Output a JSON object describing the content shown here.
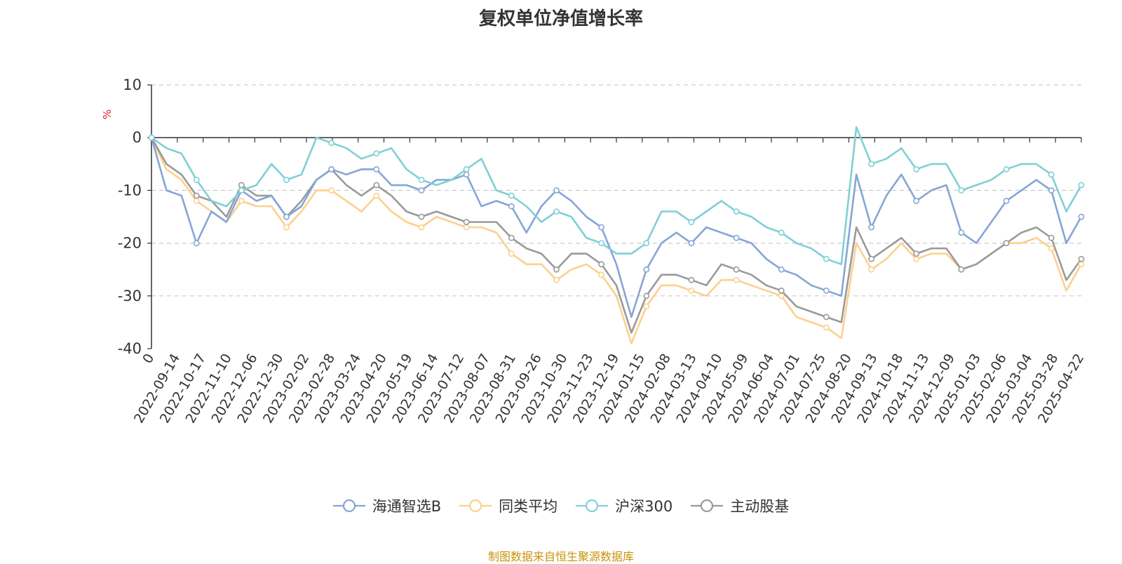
{
  "title": "复权单位净值增长率",
  "source_note": "制图数据来自恒生聚源数据库",
  "colors": {
    "海通智选B": "#86a5d6",
    "同类平均": "#fcd08e",
    "沪深300": "#7fd0d4",
    "主动股基": "#9a9a9a",
    "axis": "#333333",
    "grid": "#cccccc",
    "unit": "#e02020"
  },
  "chart_data": {
    "type": "line",
    "ylabel": "%",
    "ylim": [
      -40,
      10
    ],
    "yticks": [
      10,
      0,
      -10,
      -20,
      -30,
      -40
    ],
    "x_ticks": [
      "0",
      "2022-09-14",
      "2022-10-17",
      "2022-11-10",
      "2022-12-06",
      "2022-12-30",
      "2023-02-02",
      "2023-02-28",
      "2023-03-24",
      "2023-04-20",
      "2023-05-19",
      "2023-06-14",
      "2023-07-12",
      "2023-08-07",
      "2023-08-31",
      "2023-09-26",
      "2023-10-30",
      "2023-11-23",
      "2023-12-19",
      "2024-01-15",
      "2024-02-08",
      "2024-03-13",
      "2024-04-10",
      "2024-05-09",
      "2024-06-04",
      "2024-07-01",
      "2024-07-25",
      "2024-08-20",
      "2024-09-13",
      "2024-10-18",
      "2024-11-13",
      "2024-12-09",
      "2025-01-03",
      "2025-02-06",
      "2025-03-04",
      "2025-03-28",
      "2025-04-22"
    ],
    "grid": true,
    "legend_position": "bottom",
    "series": [
      {
        "name": "海通智选B",
        "values": [
          0,
          -10,
          -11,
          -20,
          -14,
          -16,
          -10,
          -12,
          -11,
          -15,
          -13,
          -8,
          -6,
          -7,
          -6,
          -6,
          -9,
          -9,
          -10,
          -8,
          -8,
          -7,
          -13,
          -12,
          -13,
          -18,
          -13,
          -10,
          -12,
          -15,
          -17,
          -24,
          -34,
          -25,
          -20,
          -18,
          -20,
          -17,
          -18,
          -19,
          -20,
          -23,
          -25,
          -26,
          -28,
          -29,
          -30,
          -7,
          -17,
          -11,
          -7,
          -12,
          -10,
          -9,
          -18,
          -20,
          -16,
          -12,
          -10,
          -8,
          -10,
          -20,
          -15
        ]
      },
      {
        "name": "同类平均",
        "values": [
          0,
          -6,
          -8,
          -12,
          -14,
          -16,
          -12,
          -13,
          -13,
          -17,
          -14,
          -10,
          -10,
          -12,
          -14,
          -11,
          -14,
          -16,
          -17,
          -15,
          -16,
          -17,
          -17,
          -18,
          -22,
          -24,
          -24,
          -27,
          -25,
          -24,
          -26,
          -30,
          -39,
          -32,
          -28,
          -28,
          -29,
          -30,
          -27,
          -27,
          -28,
          -29,
          -30,
          -34,
          -35,
          -36,
          -38,
          -20,
          -25,
          -23,
          -20,
          -23,
          -22,
          -22,
          -25,
          -24,
          -22,
          -20,
          -20,
          -19,
          -21,
          -29,
          -24
        ]
      },
      {
        "name": "沪深300",
        "values": [
          0,
          -2,
          -3,
          -8,
          -12,
          -13,
          -10,
          -9,
          -5,
          -8,
          -7,
          0,
          -1,
          -2,
          -4,
          -3,
          -2,
          -6,
          -8,
          -9,
          -8,
          -6,
          -4,
          -10,
          -11,
          -13,
          -16,
          -14,
          -15,
          -19,
          -20,
          -22,
          -22,
          -20,
          -14,
          -14,
          -16,
          -14,
          -12,
          -14,
          -15,
          -17,
          -18,
          -20,
          -21,
          -23,
          -24,
          2,
          -5,
          -4,
          -2,
          -6,
          -5,
          -5,
          -10,
          -9,
          -8,
          -6,
          -5,
          -5,
          -7,
          -14,
          -9
        ]
      },
      {
        "name": "主动股基",
        "values": [
          0,
          -5,
          -7,
          -11,
          -12,
          -15,
          -9,
          -11,
          -11,
          -15,
          -12,
          -8,
          -6,
          -9,
          -11,
          -9,
          -11,
          -14,
          -15,
          -14,
          -15,
          -16,
          -16,
          -16,
          -19,
          -21,
          -22,
          -25,
          -22,
          -22,
          -24,
          -28,
          -37,
          -30,
          -26,
          -26,
          -27,
          -28,
          -24,
          -25,
          -26,
          -28,
          -29,
          -32,
          -33,
          -34,
          -35,
          -17,
          -23,
          -21,
          -19,
          -22,
          -21,
          -21,
          -25,
          -24,
          -22,
          -20,
          -18,
          -17,
          -19,
          -27,
          -23
        ]
      }
    ]
  }
}
